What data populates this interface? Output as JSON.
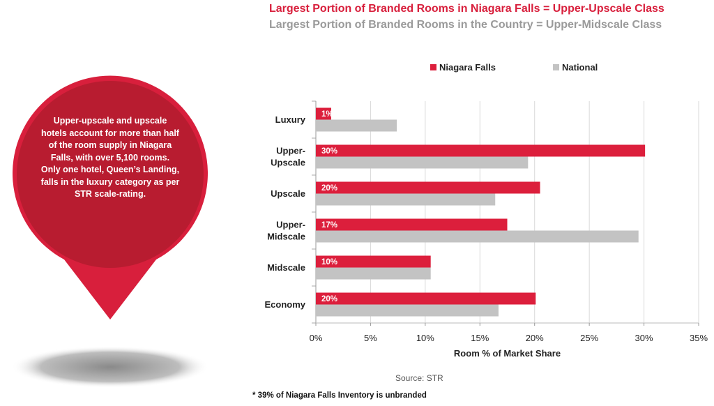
{
  "title_primary": "Largest Portion of Branded Rooms in Niagara Falls = Upper-Upscale Class",
  "title_secondary": "Largest Portion of Branded Rooms in the Country = Upper-Midscale Class",
  "callout_text": "Upper-upscale and upscale hotels account for more than half of the room supply in Niagara Falls, with over 5,100 rooms. Only one hotel, Queen’s Landing, falls in the luxury category as per STR scale-rating.",
  "source": "Source: STR",
  "footnote": "* 39% of Niagara Falls Inventory is unbranded",
  "colors": {
    "niagara": "#dc1f3c",
    "national": "#c3c3c3",
    "callout_outer": "#d81f3c",
    "callout_inner": "#b81c30"
  },
  "chart_data": {
    "type": "bar",
    "orientation": "horizontal",
    "categories": [
      [
        "Luxury"
      ],
      [
        "Upper-",
        "Upscale"
      ],
      [
        "Upscale"
      ],
      [
        "Upper-",
        "Midscale"
      ],
      [
        "Midscale"
      ],
      [
        "Economy"
      ]
    ],
    "series": [
      {
        "name": "Niagara Falls",
        "values": [
          1.4,
          30.1,
          20.5,
          17.5,
          10.5,
          20.1
        ],
        "labels": [
          "1%",
          "30%",
          "20%",
          "17%",
          "10%",
          "20%"
        ]
      },
      {
        "name": "National",
        "values": [
          7.4,
          19.4,
          16.4,
          29.5,
          10.5,
          16.7
        ]
      }
    ],
    "xlabel": "Room % of Market Share",
    "xlim": [
      0,
      35
    ],
    "xticks": [
      0,
      5,
      10,
      15,
      20,
      25,
      30,
      35
    ],
    "xtick_labels": [
      "0%",
      "5%",
      "10%",
      "15%",
      "20%",
      "25%",
      "30%",
      "35%"
    ],
    "legend_position": "top",
    "grid": true
  }
}
